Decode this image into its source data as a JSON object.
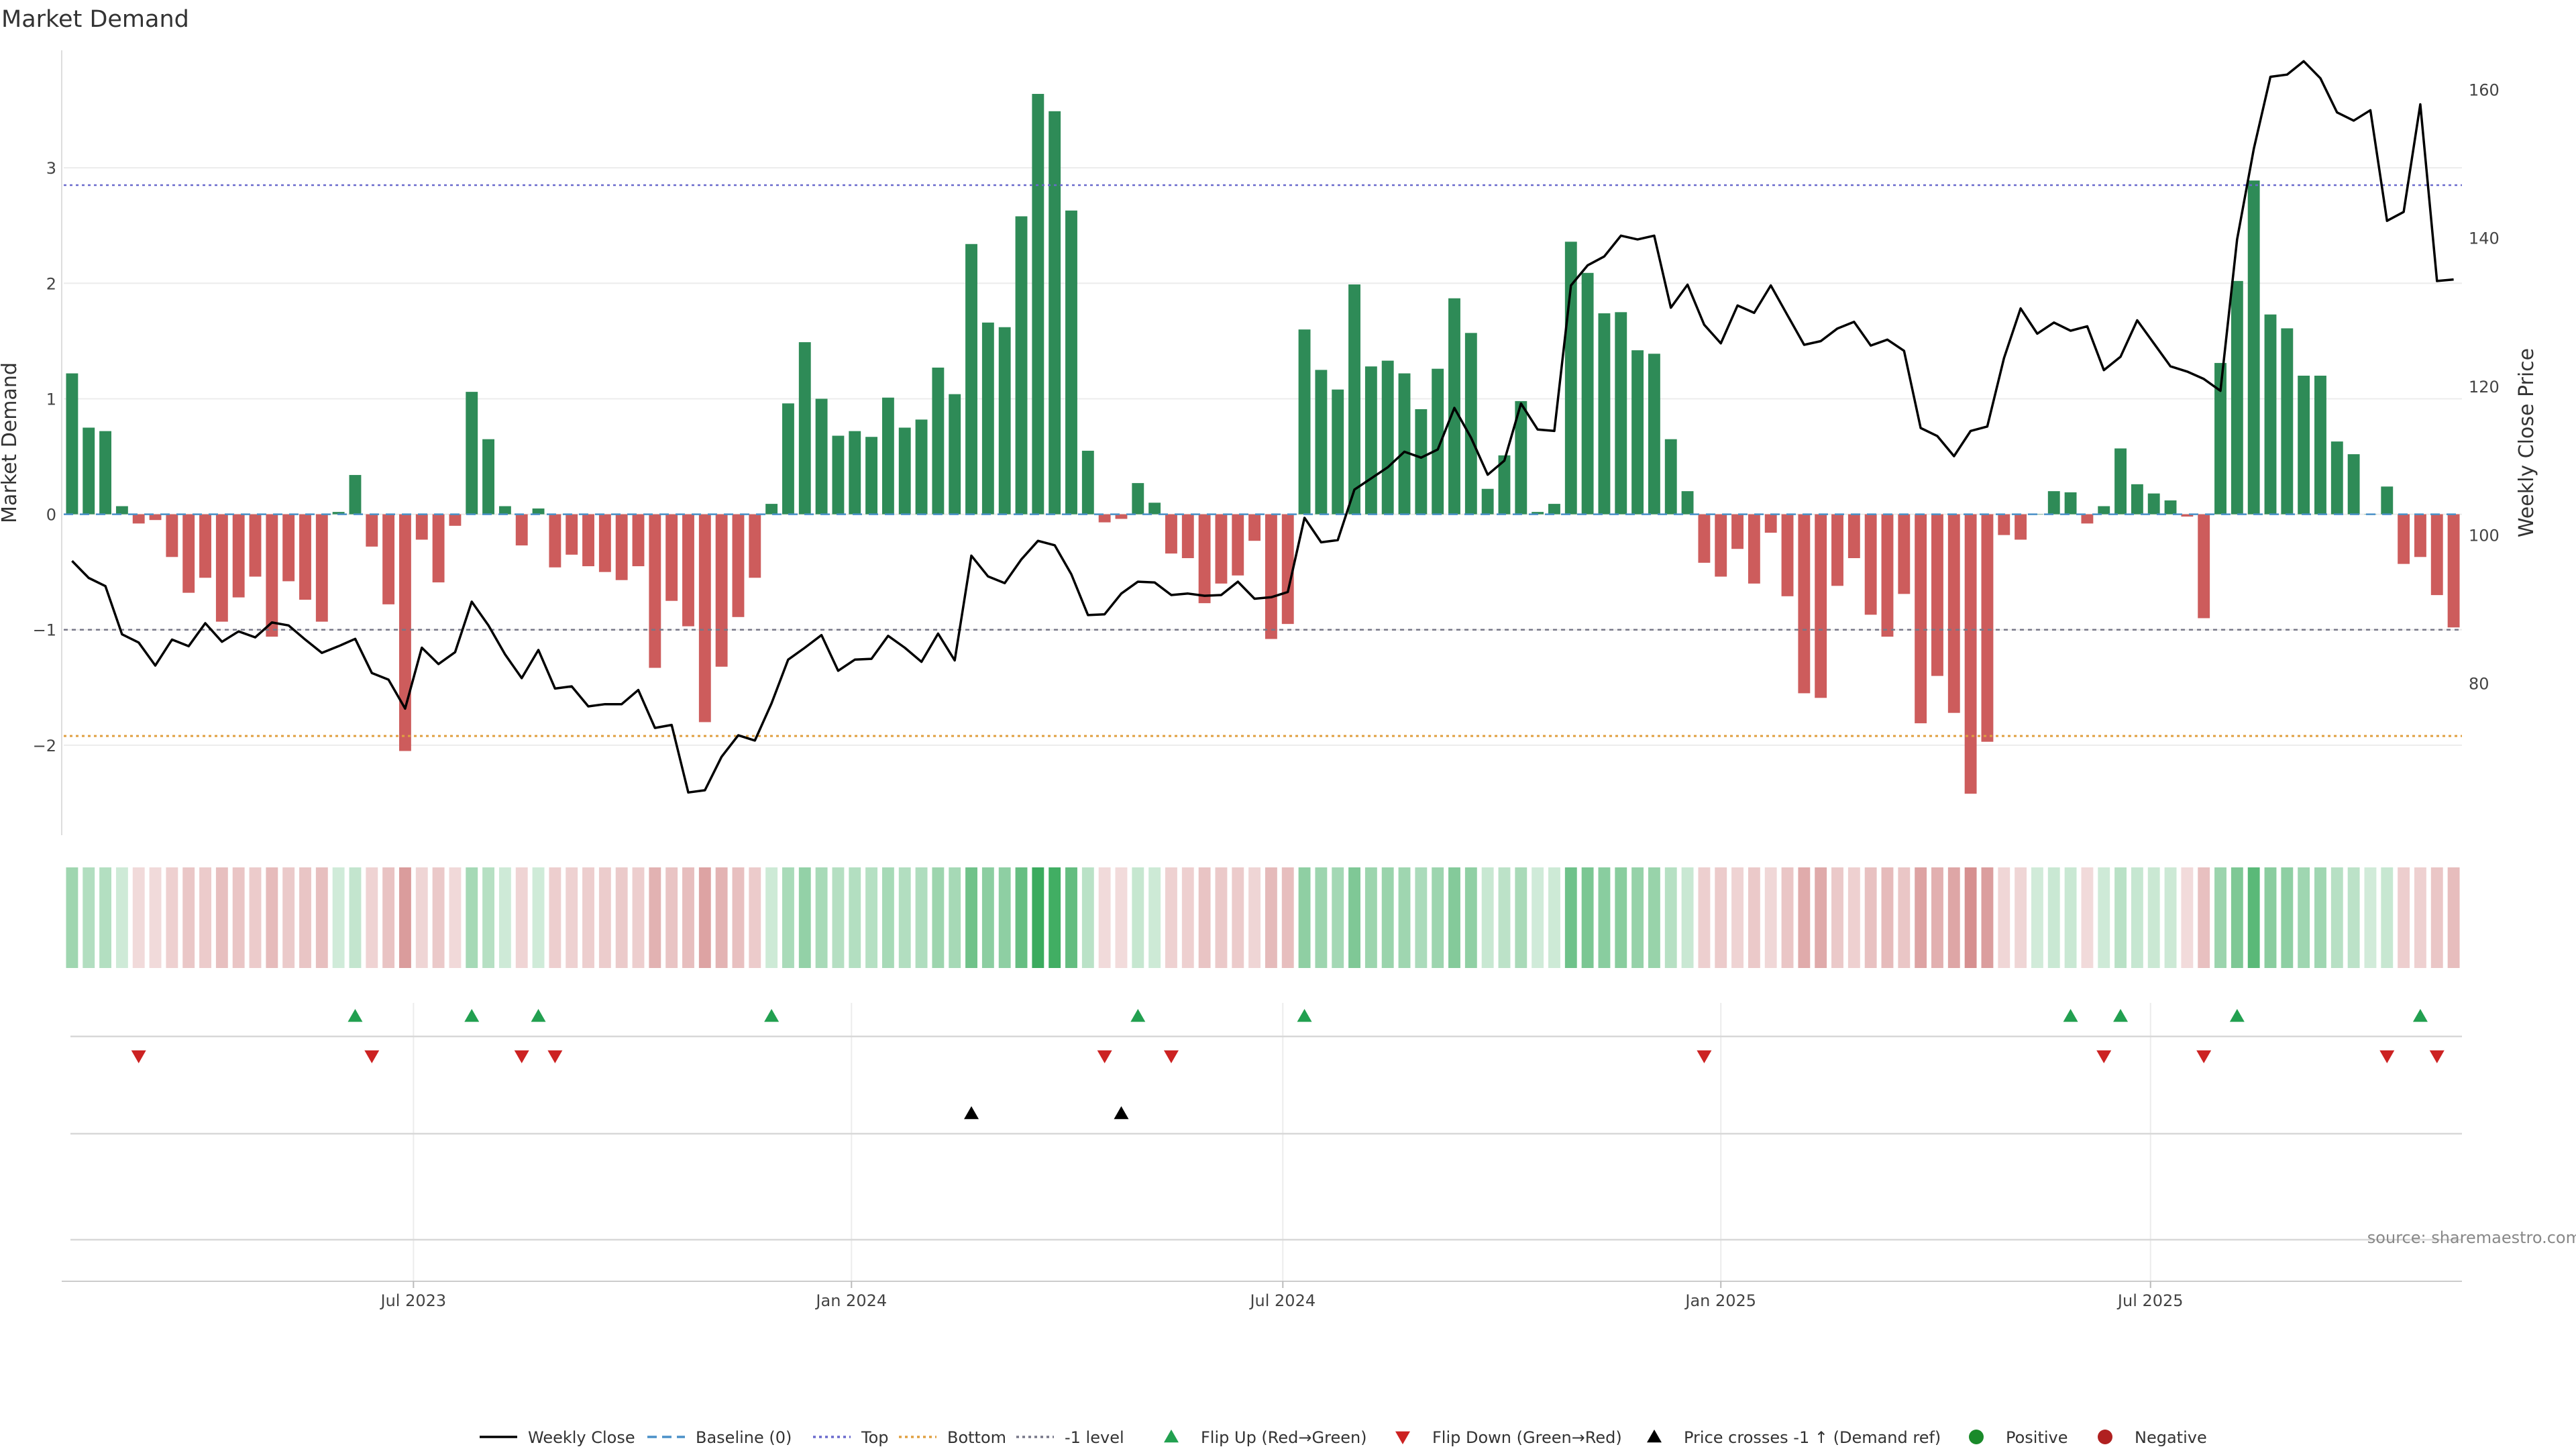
{
  "chart_data": {
    "type": "bar",
    "title": "Market Demand",
    "ylabel": "Market Demand",
    "y2label": "Weekly Close Price",
    "ylim": [
      -2.75,
      4.0
    ],
    "y2lim": [
      60,
      165
    ],
    "yticks": [
      -2,
      -1,
      0,
      1,
      2,
      3
    ],
    "y2ticks": [
      80,
      100,
      120,
      140,
      160
    ],
    "x_ticks": [
      {
        "label": "Jul 2023",
        "index": 20.5
      },
      {
        "label": "Jan 2024",
        "index": 46.8
      },
      {
        "label": "Jul 2024",
        "index": 72.7
      },
      {
        "label": "Jan 2025",
        "index": 99.0
      },
      {
        "label": "Jul 2025",
        "index": 124.8
      }
    ],
    "levels": {
      "top": 2.85,
      "bottom": -1.92,
      "minus_one": -1.0,
      "baseline": 0
    },
    "demand": [
      1.22,
      0.75,
      0.72,
      0.07,
      -0.08,
      -0.05,
      -0.37,
      -0.68,
      -0.55,
      -0.93,
      -0.72,
      -0.54,
      -1.06,
      -0.58,
      -0.74,
      -0.93,
      0.02,
      0.34,
      -0.28,
      -0.78,
      -2.05,
      -0.22,
      -0.59,
      -0.1,
      1.06,
      0.65,
      0.07,
      -0.27,
      0.05,
      -0.46,
      -0.35,
      -0.45,
      -0.5,
      -0.57,
      -0.45,
      -1.33,
      -0.75,
      -0.97,
      -1.8,
      -1.32,
      -0.89,
      -0.55,
      0.09,
      0.96,
      1.49,
      1.0,
      0.68,
      0.72,
      0.67,
      1.01,
      0.75,
      0.82,
      1.27,
      1.04,
      2.34,
      1.66,
      1.62,
      2.58,
      3.64,
      3.49,
      2.63,
      0.55,
      -0.07,
      -0.04,
      0.27,
      0.1,
      -0.34,
      -0.38,
      -0.77,
      -0.6,
      -0.53,
      -0.23,
      -1.08,
      -0.95,
      1.6,
      1.25,
      1.08,
      1.99,
      1.28,
      1.33,
      1.22,
      0.91,
      1.26,
      1.87,
      1.57,
      0.22,
      0.51,
      0.98,
      0.02,
      0.09,
      2.36,
      2.09,
      1.74,
      1.75,
      1.42,
      1.39,
      0.65,
      0.2,
      -0.42,
      -0.54,
      -0.3,
      -0.6,
      -0.16,
      -0.71,
      -1.55,
      -1.59,
      -0.62,
      -0.38,
      -0.87,
      -1.06,
      -0.69,
      -1.81,
      -1.4,
      -1.72,
      -2.42,
      -1.97,
      -0.18,
      -0.22,
      0.0,
      0.2,
      0.19,
      -0.08,
      0.07,
      0.57,
      0.26,
      0.18,
      0.12,
      -0.02,
      -0.9,
      1.31,
      2.02,
      2.89,
      1.73,
      1.61,
      1.2,
      1.2,
      0.63,
      0.52,
      0.0,
      0.24,
      -0.43,
      -0.37,
      -0.7,
      -0.98
    ],
    "weekly_close": [
      96.5,
      94.2,
      93.1,
      86.6,
      85.5,
      82.4,
      85.9,
      85.0,
      88.1,
      85.6,
      87.0,
      86.2,
      88.2,
      87.8,
      85.9,
      84.1,
      85.0,
      86.0,
      81.4,
      80.5,
      76.6,
      84.8,
      82.6,
      84.2,
      91.0,
      87.8,
      83.9,
      80.7,
      84.5,
      79.3,
      79.6,
      76.9,
      77.2,
      77.2,
      79.1,
      74.0,
      74.4,
      65.3,
      65.6,
      70.1,
      73.0,
      72.3,
      77.3,
      83.2,
      84.8,
      86.5,
      81.7,
      83.2,
      83.3,
      86.4,
      84.8,
      82.9,
      86.7,
      83.1,
      97.2,
      94.4,
      93.5,
      96.7,
      99.2,
      98.6,
      94.7,
      89.2,
      89.3,
      92.1,
      93.7,
      93.6,
      91.9,
      92.1,
      91.8,
      91.9,
      93.7,
      91.4,
      91.6,
      92.3,
      102.3,
      99.0,
      99.3,
      106.1,
      107.6,
      109.1,
      111.2,
      110.4,
      111.5,
      117.1,
      113.1,
      108.1,
      110.0,
      117.7,
      114.2,
      114.0,
      133.6,
      136.3,
      137.5,
      140.3,
      139.8,
      140.3,
      130.6,
      133.7,
      128.3,
      125.8,
      130.9,
      129.9,
      133.6,
      129.6,
      125.6,
      126.1,
      127.8,
      128.7,
      125.5,
      126.3,
      124.8,
      114.4,
      113.3,
      110.6,
      114.0,
      114.6,
      123.8,
      130.5,
      127.1,
      128.6,
      127.5,
      128.1,
      122.2,
      124.0,
      128.9,
      125.8,
      122.7,
      122.0,
      121.0,
      119.4,
      139.8,
      152.0,
      161.7,
      162.0,
      163.8,
      161.5,
      156.9,
      155.8,
      157.2,
      142.3,
      143.5,
      158.0,
      134.2,
      134.4
    ],
    "flip_up": [
      17,
      24,
      28,
      42,
      64,
      74,
      120,
      123,
      130,
      141
    ],
    "flip_down": [
      4,
      18,
      27,
      29,
      62,
      66,
      98,
      122,
      128,
      139,
      142
    ],
    "price_cross_up": [
      54,
      63
    ],
    "source": "source: sharemaestro.com",
    "legend": [
      "Weekly Close",
      "Baseline (0)",
      "Top",
      "Bottom",
      "-1 level",
      "Flip Up (Red→Green)",
      "Flip Down (Green→Red)",
      "Price crosses -1 ↑ (Demand ref)",
      "Positive",
      "Negative"
    ],
    "colors": {
      "positive": "#2e8b57",
      "negative": "#cd5c5c",
      "price": "#000000",
      "top": "#6a6acd",
      "bottom": "#e0a040",
      "minus_one": "#777788",
      "baseline": "#4a90c8",
      "flip_up": "#22a050",
      "flip_down": "#cc2222",
      "cross": "#000000",
      "pos_dot": "#1a8a2a",
      "neg_dot": "#b02020"
    }
  }
}
